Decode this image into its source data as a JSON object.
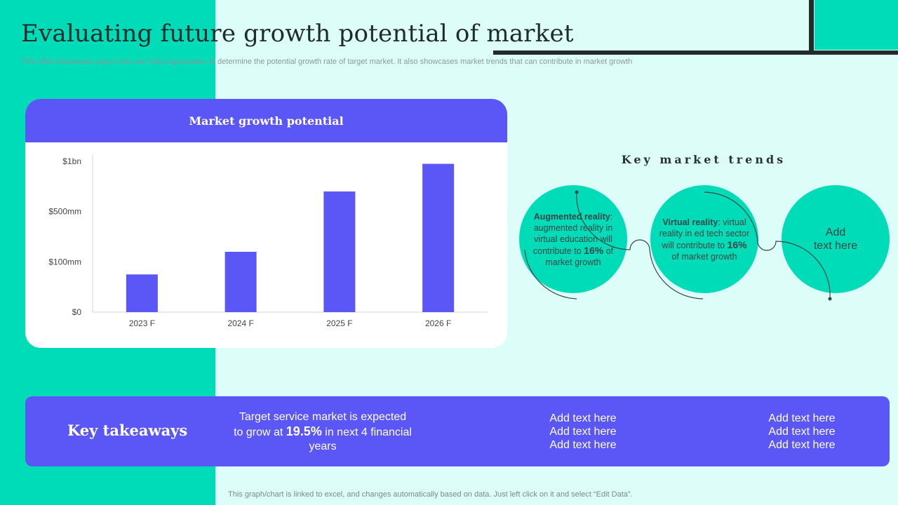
{
  "slide": {
    "title": "Evaluating future growth potential of market",
    "subtitle": "This slide showcases report that can help organization to determine the potential growth rate of target market. It also showcases market trends that can contribute in market growth",
    "footnote": "This graph/chart is linked to excel,  and changes automatically based on data. Just left click on it and select “Edit Data”."
  },
  "colors": {
    "accent": "#00dbb8",
    "bar": "#5b57f6",
    "background": "#dcfdf8",
    "dark": "#212b2b"
  },
  "chart_data": {
    "type": "bar",
    "title": "Market growth potential",
    "categories": [
      "2023 F",
      "2024 F",
      "2025 F",
      "2026 F"
    ],
    "y_ticks": [
      "$0",
      "$100mm",
      "$500mm",
      "$1bn"
    ],
    "y_tick_levels": [
      0,
      1,
      2,
      3
    ],
    "values": [
      0.75,
      1.2,
      2.4,
      2.95
    ],
    "ylim": [
      0,
      3.1
    ],
    "grid": false,
    "legend": "none"
  },
  "trends": {
    "title": "Key market trends",
    "items": [
      {
        "label": "Augmented reality",
        "colon": ":",
        "text_before": "augmented reality in virtual education will contribute to ",
        "highlight": "16%",
        "text_after": " of market growth"
      },
      {
        "label": "Virtual reality",
        "colon": ":",
        "text_before": "virtual reality in ed tech sector will contribute to ",
        "highlight": "16%",
        "text_after": " of market growth"
      },
      {
        "placeholder_line1": "Add",
        "placeholder_line2": "text here"
      }
    ]
  },
  "takeaways": {
    "title": "Key takeaways",
    "col1_before": "Target service market is expected to grow at ",
    "col1_highlight": "19.5%",
    "col1_after": " in next 4 financial years",
    "col2": [
      "Add text here",
      "Add text here",
      "Add text here"
    ],
    "col3": [
      "Add text here",
      "Add text here",
      "Add text here"
    ]
  }
}
